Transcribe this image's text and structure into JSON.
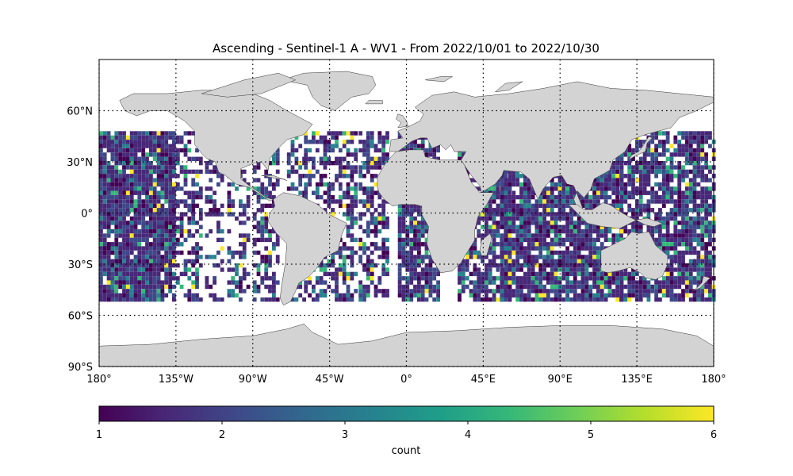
{
  "chart_data": {
    "type": "heatmap",
    "title": "Ascending - Sentinel-1 A - WV1 - From 2022/10/01 to 2022/10/30",
    "projection": "PlateCarree",
    "xlim": [
      -180,
      180
    ],
    "ylim": [
      -90,
      90
    ],
    "lat_range_data": [
      -50,
      50
    ],
    "grid": true,
    "x_tick_labels": [
      "180°",
      "135°W",
      "90°W",
      "45°W",
      "0°",
      "45°E",
      "90°E",
      "135°E",
      "180°"
    ],
    "x_tick_values": [
      -180,
      -135,
      -90,
      -45,
      0,
      45,
      90,
      135,
      180
    ],
    "y_tick_labels": [
      "60°N",
      "30°N",
      "0°",
      "30°S",
      "60°S",
      "90°S"
    ],
    "y_tick_values": [
      60,
      30,
      0,
      -30,
      -60,
      -90
    ],
    "colorbar": {
      "label": "count",
      "vmin": 1,
      "vmax": 6,
      "ticks": [
        "1",
        "2",
        "3",
        "4",
        "5",
        "6"
      ],
      "colormap": "viridis"
    },
    "land_color": "#d3d3d3",
    "ocean_color": "#ffffff",
    "description_of_values": "Per-cell observation counts, mostly 1-2 with scattered 3-6; pattern of ascending satellite swaths over ocean between 50°S and 50°N"
  },
  "colors": {
    "viridis": [
      "#440154",
      "#482878",
      "#3e4989",
      "#31688e",
      "#26828e",
      "#1f9e89",
      "#35b779",
      "#6ece58",
      "#b5de2b",
      "#fde725"
    ]
  }
}
